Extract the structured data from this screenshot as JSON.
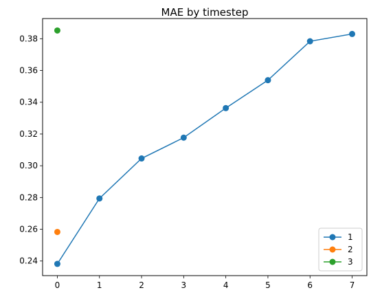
{
  "chart_data": {
    "type": "line",
    "title": "MAE by timestep",
    "xlabel": "",
    "ylabel": "",
    "xlim": [
      -0.35,
      7.35
    ],
    "ylim": [
      0.2308,
      0.3927
    ],
    "xticks": [
      0,
      1,
      2,
      3,
      4,
      5,
      6,
      7
    ],
    "yticks": [
      0.24,
      0.26,
      0.28,
      0.3,
      0.32,
      0.34,
      0.36,
      0.38
    ],
    "xtick_labels": [
      "0",
      "1",
      "2",
      "3",
      "4",
      "5",
      "6",
      "7"
    ],
    "ytick_labels": [
      "0.24",
      "0.26",
      "0.28",
      "0.30",
      "0.32",
      "0.34",
      "0.36",
      "0.38"
    ],
    "grid": false,
    "legend_position": "lower right",
    "series": [
      {
        "name": "1",
        "color": "#1f77b4",
        "marker": "circle",
        "x": [
          0,
          1,
          2,
          3,
          4,
          5,
          6,
          7
        ],
        "values": [
          0.2382,
          0.2794,
          0.3046,
          0.3177,
          0.3363,
          0.3539,
          0.3784,
          0.383
        ]
      },
      {
        "name": "2",
        "color": "#ff7f0e",
        "marker": "circle",
        "x": [
          0
        ],
        "values": [
          0.2583
        ]
      },
      {
        "name": "3",
        "color": "#2ca02c",
        "marker": "circle",
        "x": [
          0
        ],
        "values": [
          0.3852
        ]
      }
    ]
  }
}
